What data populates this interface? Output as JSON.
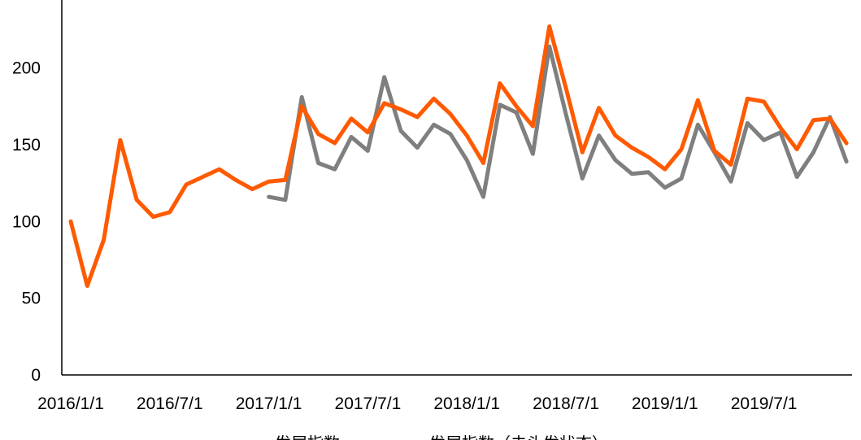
{
  "colors": {
    "series_1": "#ff5a00",
    "series_2": "#7f7f7f",
    "axis": "#000000"
  },
  "chart_data": {
    "type": "line",
    "title": "",
    "xlabel": "",
    "ylabel": "",
    "ylim": [
      0,
      240
    ],
    "yticks": [
      0,
      50,
      100,
      150,
      200
    ],
    "x_ticks": [
      "2016/1/1",
      "2016/7/1",
      "2017/1/1",
      "2017/7/1",
      "2018/1/1",
      "2018/7/1",
      "2019/1/1",
      "2019/7/1"
    ],
    "grid": false,
    "legend_position": "bottom",
    "x": [
      "2016/1/1",
      "2016/2/1",
      "2016/3/1",
      "2016/4/1",
      "2016/5/1",
      "2016/6/1",
      "2016/7/1",
      "2016/8/1",
      "2016/9/1",
      "2016/10/1",
      "2016/11/1",
      "2016/12/1",
      "2017/1/1",
      "2017/2/1",
      "2017/3/1",
      "2017/4/1",
      "2017/5/1",
      "2017/6/1",
      "2017/7/1",
      "2017/8/1",
      "2017/9/1",
      "2017/10/1",
      "2017/11/1",
      "2017/12/1",
      "2018/1/1",
      "2018/2/1",
      "2018/3/1",
      "2018/4/1",
      "2018/5/1",
      "2018/6/1",
      "2018/7/1",
      "2018/8/1",
      "2018/9/1",
      "2018/10/1",
      "2018/11/1",
      "2018/12/1",
      "2019/1/1",
      "2019/2/1",
      "2019/3/1",
      "2019/4/1",
      "2019/5/1",
      "2019/6/1",
      "2019/7/1",
      "2019/8/1",
      "2019/9/1",
      "2019/10/1",
      "2019/11/1",
      "2019/12/1"
    ],
    "series": [
      {
        "name": "发展指数",
        "color": "#ff5a00",
        "values": [
          100,
          58,
          88,
          153,
          114,
          103,
          106,
          124,
          129,
          134,
          127,
          121,
          126,
          127,
          175,
          157,
          151,
          167,
          158,
          177,
          173,
          168,
          180,
          170,
          156,
          138,
          190,
          175,
          162,
          227,
          187,
          145,
          174,
          156,
          148,
          142,
          134,
          147,
          179,
          146,
          137,
          180,
          178,
          161,
          147,
          166,
          167,
          151
        ]
      },
      {
        "name": "发展指数（去头发状态）",
        "color": "#7f7f7f",
        "values": [
          null,
          null,
          null,
          null,
          null,
          null,
          null,
          null,
          null,
          null,
          null,
          null,
          116,
          114,
          181,
          138,
          134,
          155,
          146,
          194,
          159,
          148,
          163,
          157,
          140,
          116,
          176,
          171,
          144,
          214,
          170,
          128,
          156,
          140,
          131,
          132,
          122,
          128,
          163,
          145,
          126,
          164,
          153,
          158,
          129,
          145,
          168,
          139
        ]
      }
    ]
  }
}
